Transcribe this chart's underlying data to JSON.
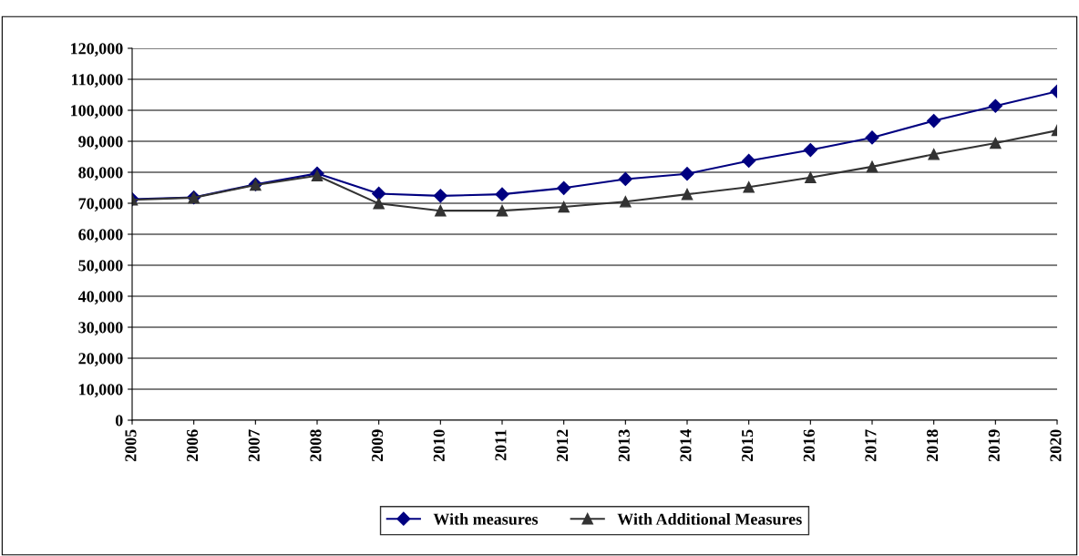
{
  "chart_data": {
    "type": "line",
    "categories": [
      "2005",
      "2006",
      "2007",
      "2008",
      "2009",
      "2010",
      "2011",
      "2012",
      "2013",
      "2014",
      "2015",
      "2016",
      "2017",
      "2018",
      "2019",
      "2020"
    ],
    "series": [
      {
        "name": "With measures",
        "color": "#000080",
        "marker": "diamond",
        "values": [
          71300,
          71900,
          76100,
          79600,
          73100,
          72400,
          72900,
          74900,
          77800,
          79500,
          83700,
          87200,
          91200,
          96600,
          101400,
          106100
        ]
      },
      {
        "name": "With Additional Measures",
        "color": "#333333",
        "marker": "triangle",
        "values": [
          71100,
          71800,
          75900,
          78900,
          69900,
          67600,
          67600,
          68800,
          70500,
          72900,
          75200,
          78300,
          81800,
          85800,
          89400,
          93500
        ]
      }
    ],
    "ylim": [
      0,
      120000
    ],
    "yticks": [
      {
        "value": 0,
        "label": "0"
      },
      {
        "value": 10000,
        "label": "10,000"
      },
      {
        "value": 20000,
        "label": "20,000"
      },
      {
        "value": 30000,
        "label": "30,000"
      },
      {
        "value": 40000,
        "label": "40,000"
      },
      {
        "value": 50000,
        "label": "50,000"
      },
      {
        "value": 60000,
        "label": "60,000"
      },
      {
        "value": 70000,
        "label": "70,000"
      },
      {
        "value": 80000,
        "label": "80,000"
      },
      {
        "value": 90000,
        "label": "90,000"
      },
      {
        "value": 100000,
        "label": "100,000"
      },
      {
        "value": 110000,
        "label": "110,000"
      },
      {
        "value": 120000,
        "label": "120,000"
      }
    ],
    "grid": "y",
    "legend": "bottom",
    "line_style": "solid"
  }
}
